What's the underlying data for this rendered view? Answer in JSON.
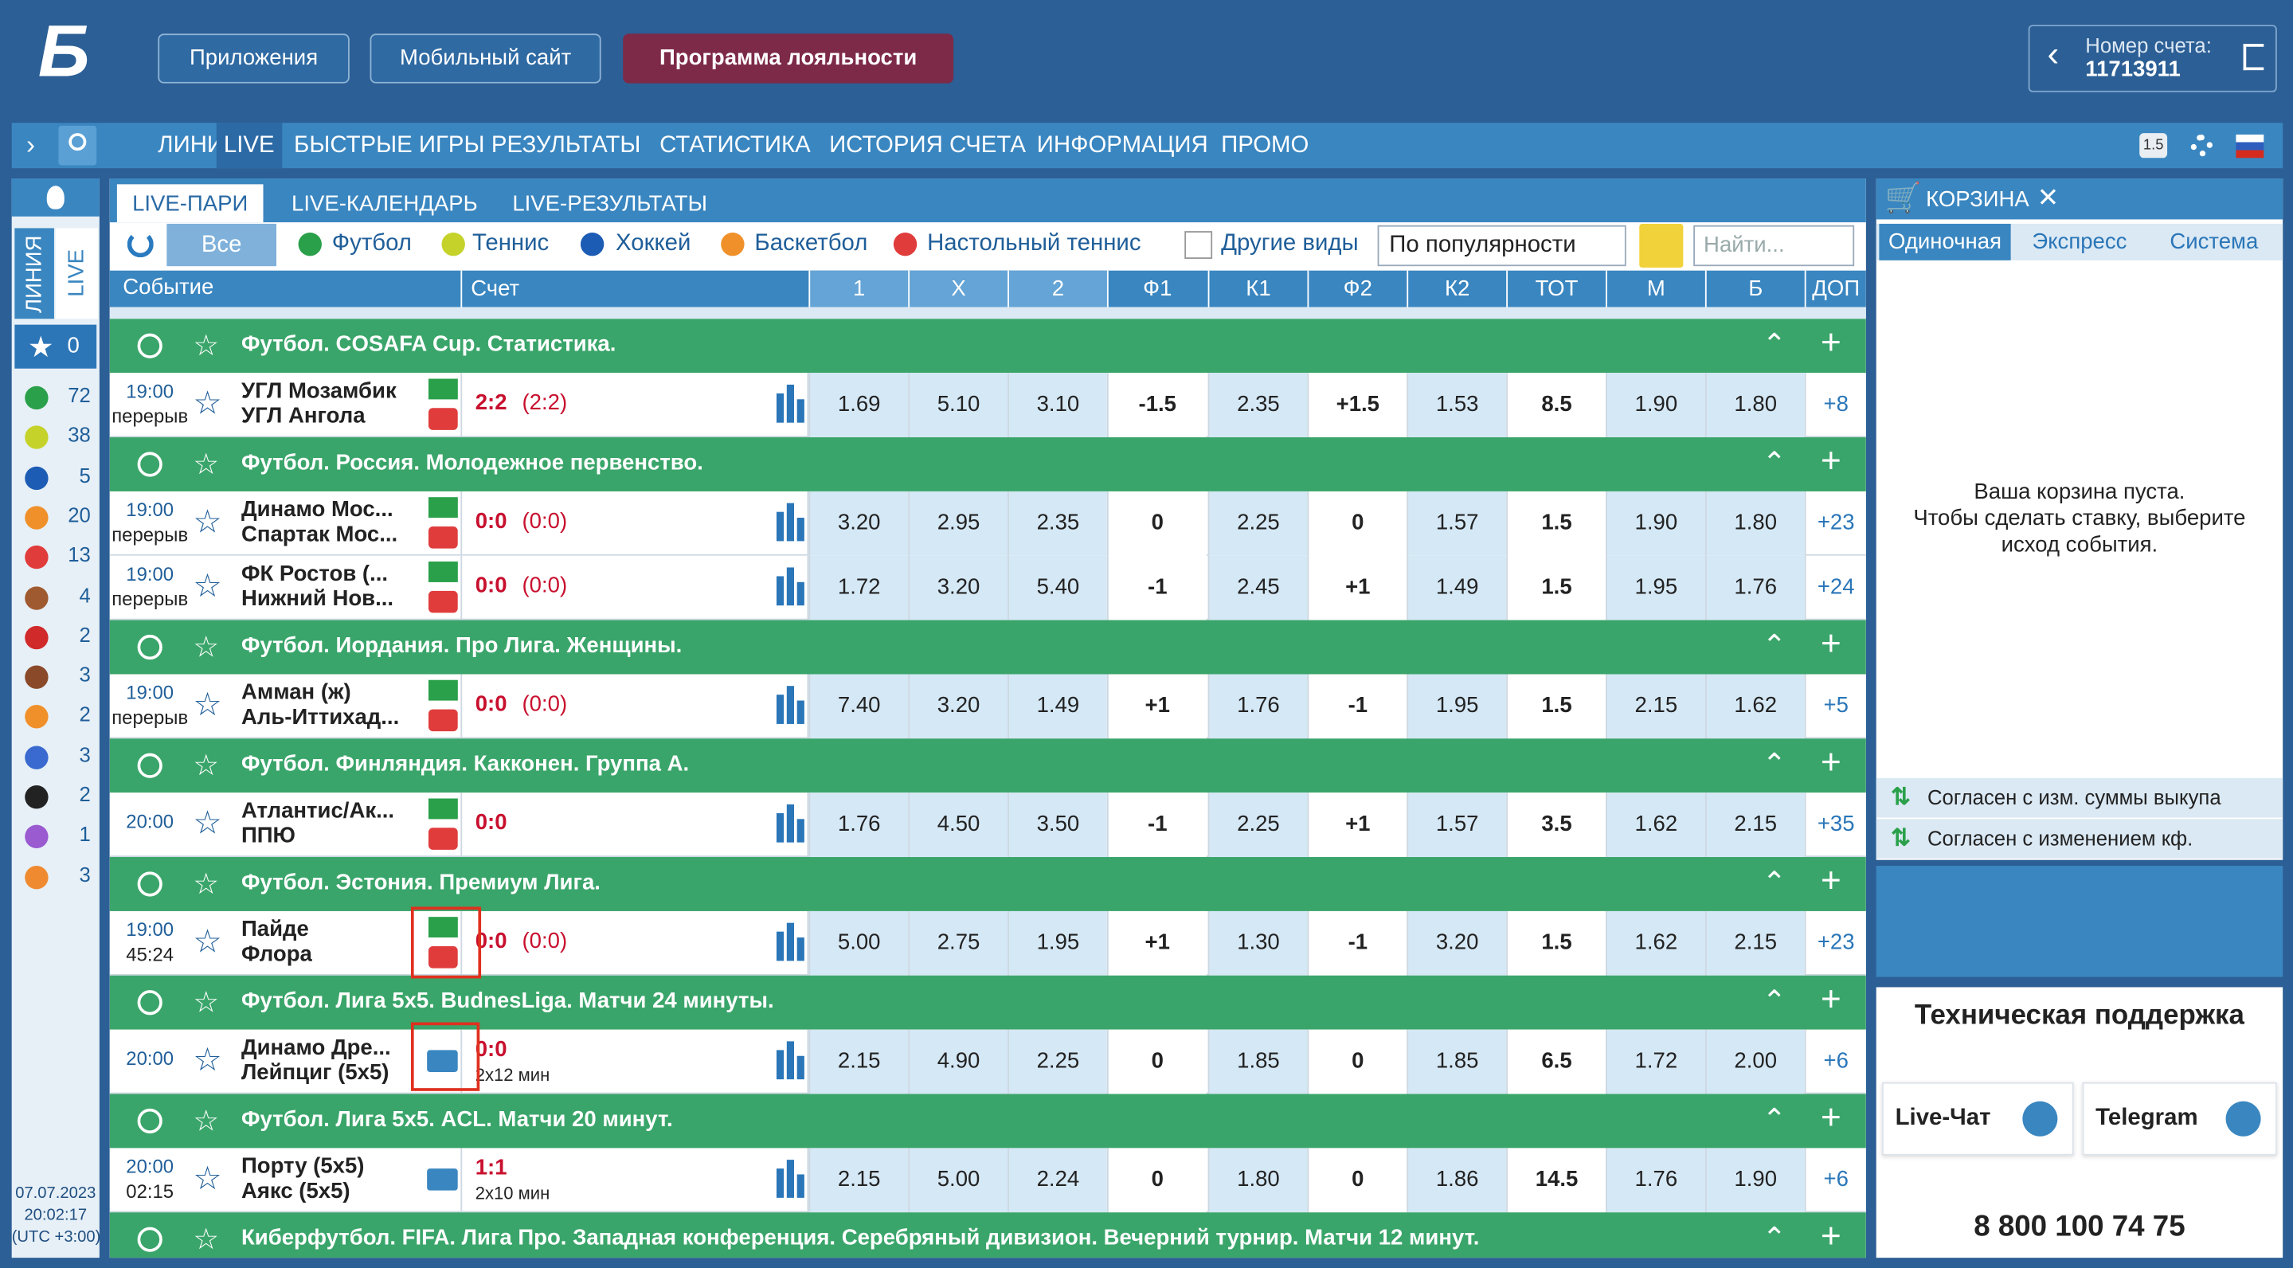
{
  "header": {
    "logo": "Б",
    "buttons": [
      "Приложения",
      "Мобильный сайт",
      "Программа лояльности"
    ],
    "account": {
      "label": "Номер счета:",
      "number": "11713911"
    }
  },
  "nav": {
    "items": [
      "ЛИНИЯ",
      "LIVE",
      "БЫСТРЫЕ ИГРЫ",
      "РЕЗУЛЬТАТЫ",
      "СТАТИСТИКА",
      "ИСТОРИЯ СЧЕТА",
      "ИНФОРМАЦИЯ",
      "ПРОМО"
    ],
    "badge": "1.5"
  },
  "sidebar": {
    "tabs": [
      "ЛИНИЯ",
      "LIVE"
    ],
    "favorites": "0",
    "sports": [
      "72",
      "38",
      "5",
      "20",
      "13",
      "4",
      "2",
      "3",
      "2",
      "3",
      "2",
      "1",
      "3"
    ],
    "datetime": [
      "07.07.2023",
      "20:02:17",
      "(UTC +3:00)"
    ]
  },
  "events": {
    "tabs": [
      "LIVE-ПАРИ",
      "LIVE-КАЛЕНДАРЬ",
      "LIVE-РЕЗУЛЬТАТЫ"
    ],
    "filters": [
      "Все",
      "Футбол",
      "Теннис",
      "Хоккей",
      "Баскетбол",
      "Настольный теннис"
    ],
    "other": "Другие виды",
    "sort": "По популярности",
    "search": "Найти...",
    "columns": [
      "Событие",
      "Счет",
      "1",
      "X",
      "2",
      "Ф1",
      "К1",
      "Ф2",
      "К2",
      "ТОТ",
      "М",
      "Б",
      "ДОП"
    ],
    "rows": [
      {
        "league": "Футбол. COSAFA Cup. Статистика."
      },
      {
        "time": "19:00",
        "status": "перерыв",
        "team1": "УГЛ Мозамбик",
        "team2": "УГЛ Ангола",
        "score": "2:2",
        "score_extra": "(2:2)",
        "odds": [
          "1.69",
          "5.10",
          "3.10",
          "-1.5",
          "2.35",
          "+1.5",
          "1.53",
          "8.5",
          "1.90",
          "1.80"
        ],
        "more": "+8"
      },
      {
        "league": "Футбол. Россия. Молодежное первенство."
      },
      {
        "time": "19:00",
        "status": "перерыв",
        "team1": "Динамо Мос...",
        "team2": "Спартак Мос...",
        "score": "0:0",
        "score_extra": "(0:0)",
        "odds": [
          "3.20",
          "2.95",
          "2.35",
          "0",
          "2.25",
          "0",
          "1.57",
          "1.5",
          "1.90",
          "1.80"
        ],
        "more": "+23"
      },
      {
        "time": "19:00",
        "status": "перерыв",
        "team1": "ФК Ростов (...",
        "team2": "Нижний Нов...",
        "score": "0:0",
        "score_extra": "(0:0)",
        "odds": [
          "1.72",
          "3.20",
          "5.40",
          "-1",
          "2.45",
          "+1",
          "1.49",
          "1.5",
          "1.95",
          "1.76"
        ],
        "more": "+24"
      },
      {
        "league": "Футбол. Иордания. Про Лига. Женщины."
      },
      {
        "time": "19:00",
        "status": "перерыв",
        "team1": "Амман (ж)",
        "team2": "Аль-Иттихад...",
        "score": "0:0",
        "score_extra": "(0:0)",
        "odds": [
          "7.40",
          "3.20",
          "1.49",
          "+1",
          "1.76",
          "-1",
          "1.95",
          "1.5",
          "2.15",
          "1.62"
        ],
        "more": "+5"
      },
      {
        "league": "Футбол. Финляндия. Какконен. Группа А."
      },
      {
        "time": "20:00",
        "team1": "Атлантис/Ак...",
        "team2": "ППЮ",
        "score": "0:0",
        "odds": [
          "1.76",
          "4.50",
          "3.50",
          "-1",
          "2.25",
          "+1",
          "1.57",
          "3.5",
          "1.62",
          "2.15"
        ],
        "more": "+35"
      },
      {
        "league": "Футбол. Эстония. Премиум Лига."
      },
      {
        "time": "19:00",
        "status": "45:24",
        "team1": "Пайде",
        "team2": "Флора",
        "score": "0:0",
        "score_extra": "(0:0)",
        "odds": [
          "5.00",
          "2.75",
          "1.95",
          "+1",
          "1.30",
          "-1",
          "3.20",
          "1.5",
          "1.62",
          "2.15"
        ],
        "more": "+23"
      },
      {
        "league": "Футбол. Лига 5х5. BudnesLiga. Матчи 24 минуты."
      },
      {
        "time": "20:00",
        "team1": "Динамо Дре...",
        "team2": "Лейпциг (5х5)",
        "score": "0:0",
        "duration": "2х12 мин",
        "odds": [
          "2.15",
          "4.90",
          "2.25",
          "0",
          "1.85",
          "0",
          "1.85",
          "6.5",
          "1.72",
          "2.00"
        ],
        "more": "+6"
      },
      {
        "league": "Футбол. Лига 5х5. ACL. Матчи 20 минут."
      },
      {
        "time": "20:00",
        "status": "02:15",
        "team1": "Порту (5х5)",
        "team2": "Аякс (5х5)",
        "score": "1:1",
        "duration": "2х10 мин",
        "odds": [
          "2.15",
          "5.00",
          "2.24",
          "0",
          "1.80",
          "0",
          "1.86",
          "14.5",
          "1.76",
          "1.90"
        ],
        "more": "+6"
      },
      {
        "league": "Киберфутбол. FIFA. Лига Про. Западная конференция. Серебряный дивизион. Вечерний турнир. Матчи 12 минут."
      }
    ]
  },
  "cart": {
    "title": "КОРЗИНА",
    "tabs": [
      "Одиночная",
      "Экспресс",
      "Система"
    ],
    "empty": [
      "Ваша корзина пуста.",
      "Чтобы сделать ставку, выберите",
      "исход события."
    ],
    "options": [
      "Согласен с изм. суммы выкупа",
      "Согласен с изменением кф."
    ]
  },
  "support": {
    "title": "Техническая поддержка",
    "buttons": [
      "Live-Чат",
      "Telegram"
    ],
    "phone": "8 800 100 74 75"
  }
}
